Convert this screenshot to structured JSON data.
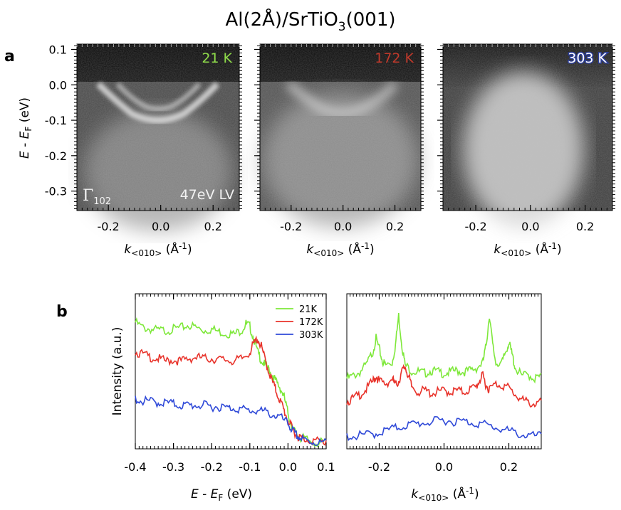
{
  "figure": {
    "title": {
      "main": "Al(2Å)/SrTiO",
      "sub": "3",
      "tail": "(001)"
    },
    "panel_a_label": "a",
    "panel_b_label": "b"
  },
  "chart_data": [
    {
      "type": "heatmap",
      "panel": "a",
      "description": "ARPES intensity maps at three temperatures",
      "ylabel": {
        "italic": "E",
        "mid": " - ",
        "italic2": "E",
        "sub": "F",
        "tail": " (eV)"
      },
      "xlabel": {
        "italic": "k",
        "sub": "<010>",
        "tail": " (Å",
        "sup": "-1",
        "close": ")"
      },
      "xlim": [
        -0.32,
        0.3
      ],
      "ylim": [
        -0.355,
        0.115
      ],
      "xticks": [
        "-0.2",
        "0.0",
        "0.2"
      ],
      "yticks": [
        "0.1",
        "0.0",
        "-0.1",
        "-0.2",
        "-0.3"
      ],
      "ytick_values": [
        0.1,
        0.0,
        -0.1,
        -0.2,
        -0.3
      ],
      "xtick_values": [
        -0.2,
        0.0,
        0.2
      ],
      "maps": [
        {
          "temperature": "21 K",
          "color": "#8fdc4a",
          "annotation_left": "Γ",
          "annotation_left_sub": "102",
          "annotation_right": "47eV LV"
        },
        {
          "temperature": "172 K",
          "color": "#c0392b"
        },
        {
          "temperature": "303 K",
          "color": "#ffffff"
        }
      ]
    },
    {
      "type": "line",
      "panel": "b-left",
      "xlabel": {
        "italic": "E",
        "mid": " - ",
        "italic2": "E",
        "sub": "F",
        "tail": " (eV)"
      },
      "ylabel": "Intensity (a.u.)",
      "xlim": [
        -0.4,
        0.1
      ],
      "xticks": [
        "-0.4",
        "-0.3",
        "-0.2",
        "-0.1",
        "0.0",
        "0.1"
      ],
      "xtick_values": [
        -0.4,
        -0.3,
        -0.2,
        -0.1,
        0.0,
        0.1
      ],
      "legend": {
        "position": "top-right",
        "entries": [
          "21K",
          "172K",
          "303K"
        ]
      },
      "series": [
        {
          "name": "21K",
          "color": "#7ee83a",
          "x": [
            -0.4,
            -0.38,
            -0.36,
            -0.34,
            -0.32,
            -0.3,
            -0.28,
            -0.26,
            -0.24,
            -0.22,
            -0.2,
            -0.18,
            -0.16,
            -0.14,
            -0.12,
            -0.11,
            -0.1,
            -0.09,
            -0.08,
            -0.07,
            -0.06,
            -0.05,
            -0.04,
            -0.03,
            -0.02,
            -0.01,
            0.0,
            0.01,
            0.02,
            0.03,
            0.04,
            0.06,
            0.08,
            0.1
          ],
          "y": [
            0.92,
            0.88,
            0.87,
            0.86,
            0.86,
            0.87,
            0.88,
            0.9,
            0.88,
            0.86,
            0.87,
            0.85,
            0.84,
            0.83,
            0.87,
            0.91,
            0.89,
            0.8,
            0.7,
            0.64,
            0.6,
            0.57,
            0.52,
            0.47,
            0.43,
            0.36,
            0.24,
            0.15,
            0.09,
            0.06,
            0.05,
            0.03,
            0.02,
            0.02
          ]
        },
        {
          "name": "172K",
          "color": "#e8322a",
          "x": [
            -0.4,
            -0.38,
            -0.36,
            -0.34,
            -0.32,
            -0.3,
            -0.28,
            -0.26,
            -0.24,
            -0.22,
            -0.2,
            -0.18,
            -0.16,
            -0.14,
            -0.12,
            -0.1,
            -0.09,
            -0.08,
            -0.07,
            -0.06,
            -0.05,
            -0.04,
            -0.03,
            -0.02,
            -0.01,
            0.0,
            0.01,
            0.02,
            0.03,
            0.04,
            0.06,
            0.08,
            0.1
          ],
          "y": [
            0.7,
            0.68,
            0.66,
            0.65,
            0.63,
            0.64,
            0.63,
            0.65,
            0.66,
            0.65,
            0.65,
            0.64,
            0.64,
            0.63,
            0.65,
            0.7,
            0.76,
            0.8,
            0.74,
            0.64,
            0.55,
            0.47,
            0.4,
            0.33,
            0.26,
            0.19,
            0.13,
            0.09,
            0.06,
            0.05,
            0.04,
            0.03,
            0.02
          ]
        },
        {
          "name": "303K",
          "color": "#2f49d8",
          "x": [
            -0.4,
            -0.38,
            -0.36,
            -0.34,
            -0.32,
            -0.3,
            -0.28,
            -0.26,
            -0.24,
            -0.22,
            -0.2,
            -0.18,
            -0.16,
            -0.14,
            -0.12,
            -0.1,
            -0.08,
            -0.06,
            -0.04,
            -0.02,
            0.0,
            0.01,
            0.02,
            0.03,
            0.04,
            0.06,
            0.08,
            0.1
          ],
          "y": [
            0.35,
            0.33,
            0.33,
            0.32,
            0.32,
            0.31,
            0.3,
            0.3,
            0.3,
            0.3,
            0.29,
            0.29,
            0.28,
            0.28,
            0.27,
            0.26,
            0.26,
            0.25,
            0.23,
            0.21,
            0.16,
            0.12,
            0.08,
            0.06,
            0.04,
            0.03,
            0.02,
            0.02
          ]
        }
      ]
    },
    {
      "type": "line",
      "panel": "b-right",
      "xlabel": {
        "italic": "k",
        "sub": "<010>",
        "tail": " (Å",
        "sup": "-1",
        "close": ")"
      },
      "xlim": [
        -0.3,
        0.3
      ],
      "xticks": [
        "-0.2",
        "0.0",
        "0.2"
      ],
      "xtick_values": [
        -0.2,
        0.0,
        0.2
      ],
      "series": [
        {
          "name": "21K",
          "color": "#7ee83a",
          "x": [
            -0.3,
            -0.28,
            -0.26,
            -0.24,
            -0.22,
            -0.21,
            -0.2,
            -0.19,
            -0.18,
            -0.16,
            -0.15,
            -0.14,
            -0.13,
            -0.12,
            -0.1,
            -0.08,
            -0.06,
            -0.04,
            -0.02,
            0.0,
            0.02,
            0.04,
            0.06,
            0.08,
            0.1,
            0.12,
            0.13,
            0.14,
            0.15,
            0.16,
            0.18,
            0.19,
            0.2,
            0.21,
            0.22,
            0.24,
            0.26,
            0.28,
            0.3
          ],
          "y": [
            0.5,
            0.52,
            0.55,
            0.6,
            0.7,
            0.8,
            0.72,
            0.63,
            0.6,
            0.62,
            0.75,
            0.97,
            0.75,
            0.6,
            0.56,
            0.55,
            0.54,
            0.56,
            0.55,
            0.54,
            0.55,
            0.56,
            0.55,
            0.56,
            0.58,
            0.62,
            0.75,
            0.98,
            0.75,
            0.62,
            0.62,
            0.7,
            0.77,
            0.68,
            0.58,
            0.52,
            0.53,
            0.5,
            0.52
          ]
        },
        {
          "name": "172K",
          "color": "#e8322a",
          "x": [
            -0.3,
            -0.28,
            -0.26,
            -0.24,
            -0.22,
            -0.21,
            -0.2,
            -0.18,
            -0.16,
            -0.15,
            -0.14,
            -0.13,
            -0.12,
            -0.11,
            -0.1,
            -0.08,
            -0.06,
            -0.04,
            -0.02,
            0.0,
            0.02,
            0.04,
            0.06,
            0.08,
            0.1,
            0.11,
            0.12,
            0.13,
            0.14,
            0.16,
            0.18,
            0.2,
            0.22,
            0.24,
            0.26,
            0.28,
            0.3
          ],
          "y": [
            0.33,
            0.35,
            0.38,
            0.42,
            0.48,
            0.52,
            0.48,
            0.46,
            0.5,
            0.45,
            0.48,
            0.55,
            0.59,
            0.52,
            0.44,
            0.4,
            0.41,
            0.39,
            0.4,
            0.41,
            0.4,
            0.41,
            0.4,
            0.42,
            0.44,
            0.49,
            0.52,
            0.45,
            0.42,
            0.46,
            0.45,
            0.43,
            0.38,
            0.34,
            0.32,
            0.31,
            0.32
          ]
        },
        {
          "name": "303K",
          "color": "#2f49d8",
          "x": [
            -0.3,
            -0.27,
            -0.24,
            -0.21,
            -0.18,
            -0.15,
            -0.12,
            -0.09,
            -0.06,
            -0.03,
            0.0,
            0.03,
            0.06,
            0.09,
            0.12,
            0.15,
            0.18,
            0.21,
            0.24,
            0.27,
            0.3
          ],
          "y": [
            0.07,
            0.07,
            0.08,
            0.09,
            0.11,
            0.13,
            0.15,
            0.16,
            0.17,
            0.18,
            0.19,
            0.18,
            0.18,
            0.17,
            0.16,
            0.14,
            0.12,
            0.1,
            0.08,
            0.07,
            0.07
          ]
        }
      ]
    }
  ]
}
